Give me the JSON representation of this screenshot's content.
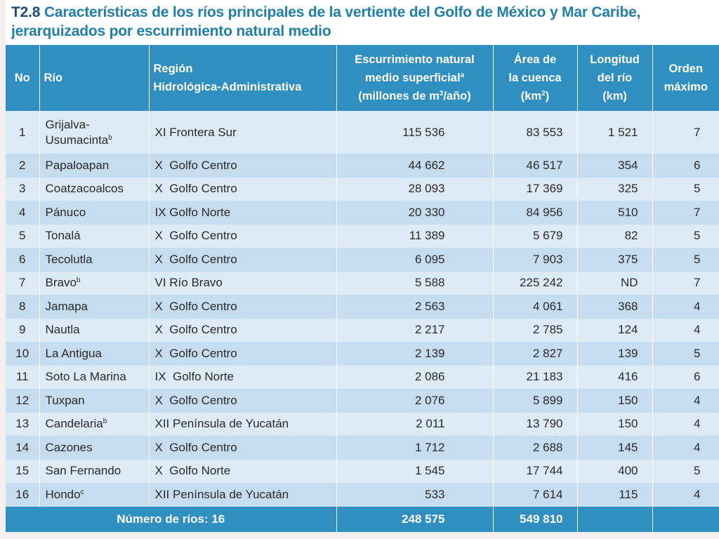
{
  "title": {
    "code": "T2.8",
    "line1": "Características de los ríos principales de la vertiente del Golfo de México y Mar Caribe,",
    "line2": "jerarquizados por escurrimiento natural medio"
  },
  "headers": {
    "no": "No",
    "river": "Río",
    "region_l1": "Región",
    "region_l2": "Hidrológica-Administrativa",
    "runoff_l1": "Escurrimiento natural",
    "runoff_l2": "medio superficial",
    "runoff_sup": "a",
    "runoff_l3_a": "(millones de m",
    "runoff_l3_sup": "3",
    "runoff_l3_b": "/año)",
    "area_l1": "Área de",
    "area_l2": "la cuenca",
    "area_l3_a": "(km",
    "area_l3_sup": "2",
    "area_l3_b": ")",
    "length_l1": "Longitud",
    "length_l2": "del río",
    "length_l3": "(km)",
    "order_l1": "Orden",
    "order_l2": "máximo"
  },
  "rows": [
    {
      "no": "1",
      "river": "Grijalva-",
      "river2": "Usumacinta",
      "sup": "b",
      "region": "XI Frontera Sur",
      "runoff": "115 536",
      "area": "83 553",
      "length": "1 521",
      "order": "7"
    },
    {
      "no": "2",
      "river": "Papaloapan",
      "sup": "",
      "region": "X  Golfo Centro",
      "runoff": "44 662",
      "area": "46 517",
      "length": "354",
      "order": "6"
    },
    {
      "no": "3",
      "river": "Coatzacoalcos",
      "sup": "",
      "region": "X  Golfo Centro",
      "runoff": "28 093",
      "area": "17 369",
      "length": "325",
      "order": "5"
    },
    {
      "no": "4",
      "river": "Pánuco",
      "sup": "",
      "region": "IX Golfo Norte",
      "runoff": "20 330",
      "area": "84 956",
      "length": "510",
      "order": "7"
    },
    {
      "no": "5",
      "river": "Tonalá",
      "sup": "",
      "region": "X  Golfo Centro",
      "runoff": "11 389",
      "area": "5 679",
      "length": "82",
      "order": "5"
    },
    {
      "no": "6",
      "river": "Tecolutla",
      "sup": "",
      "region": "X  Golfo Centro",
      "runoff": "6 095",
      "area": "7 903",
      "length": "375",
      "order": "5"
    },
    {
      "no": "7",
      "river": "Bravo",
      "sup": "b",
      "region": "VI Río Bravo",
      "runoff": "5 588",
      "area": "225 242",
      "length": "ND",
      "order": "7"
    },
    {
      "no": "8",
      "river": "Jamapa",
      "sup": "",
      "region": "X  Golfo Centro",
      "runoff": "2 563",
      "area": "4 061",
      "length": "368",
      "order": "4"
    },
    {
      "no": "9",
      "river": "Nautla",
      "sup": "",
      "region": "X  Golfo Centro",
      "runoff": "2 217",
      "area": "2 785",
      "length": "124",
      "order": "4"
    },
    {
      "no": "10",
      "river": "La Antigua",
      "sup": "",
      "region": "X  Golfo Centro",
      "runoff": "2 139",
      "area": "2 827",
      "length": "139",
      "order": "5"
    },
    {
      "no": "11",
      "river": "Soto La Marina",
      "sup": "",
      "region": "IX  Golfo Norte",
      "runoff": "2 086",
      "area": "21 183",
      "length": "416",
      "order": "6"
    },
    {
      "no": "12",
      "river": "Tuxpan",
      "sup": "",
      "region": "X  Golfo Centro",
      "runoff": "2 076",
      "area": "5 899",
      "length": "150",
      "order": "4"
    },
    {
      "no": "13",
      "river": "Candelaria",
      "sup": "b",
      "region": "XII Península de Yucatán",
      "runoff": "2 011",
      "area": "13 790",
      "length": "150",
      "order": "4"
    },
    {
      "no": "14",
      "river": "Cazones",
      "sup": "",
      "region": "X  Golfo Centro",
      "runoff": "1 712",
      "area": "2 688",
      "length": "145",
      "order": "4"
    },
    {
      "no": "15",
      "river": "San Fernando",
      "sup": "",
      "region": "X  Golfo Norte",
      "runoff": "1 545",
      "area": "17 744",
      "length": "400",
      "order": "5"
    },
    {
      "no": "16",
      "river": "Hondo",
      "sup": "c",
      "region": "XII Península de Yucatán",
      "runoff": "533",
      "area": "7 614",
      "length": "115",
      "order": "4"
    }
  ],
  "footer": {
    "label": "Número de ríos: 16",
    "runoff_total": "248 575",
    "area_total": "549 810",
    "length_total": "",
    "order_total": ""
  },
  "colors": {
    "header_bg": "#2f8fc0",
    "title_text": "#1f7fad",
    "row_light": "#dcebf6",
    "row_dark": "#c5ddee"
  }
}
